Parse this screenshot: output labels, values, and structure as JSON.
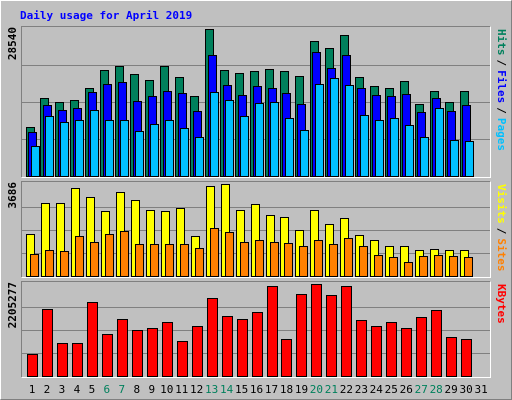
{
  "chart_data": [
    {
      "type": "bar",
      "title": "Daily usage for April 2019",
      "legend_separator": "/",
      "ylim": [
        0,
        28540
      ],
      "yticks": [
        28540
      ],
      "series": [
        {
          "name": "Hits",
          "color": "#00805c",
          "values": [
            9514,
            15144,
            14367,
            14755,
            17085,
            20580,
            21357,
            19803,
            18638,
            21357,
            19221,
            15532,
            28540,
            20580,
            19998,
            20386,
            20774,
            20386,
            19415,
            26211,
            24851,
            27375,
            19221,
            17474,
            17085,
            18444,
            13979,
            16503,
            14367,
            16503,
            null
          ]
        },
        {
          "name": "Files",
          "color": "#0000ff",
          "values": [
            8543,
            13785,
            12814,
            13202,
            16309,
            17862,
            18250,
            14561,
            15532,
            16503,
            16114,
            12620,
            23492,
            17668,
            15726,
            17474,
            17085,
            16114,
            13979,
            24075,
            20968,
            23492,
            17085,
            15726,
            15532,
            15920,
            12426,
            15144,
            12620,
            13785,
            null
          ]
        },
        {
          "name": "Pages",
          "color": "#00c0ff",
          "values": [
            5825,
            11649,
            10484,
            10872,
            12814,
            10872,
            10872,
            8737,
            10096,
            10872,
            9319,
            7572,
            16309,
            14755,
            11649,
            14173,
            14367,
            11261,
            8931,
            17862,
            19027,
            17668,
            11843,
            10872,
            11261,
            9902,
            7572,
            13202,
            6989,
            6795,
            null
          ]
        }
      ]
    },
    {
      "type": "bar",
      "legend_separator": "/",
      "ylim": [
        0,
        3686
      ],
      "yticks": [
        3686
      ],
      "series": [
        {
          "name": "Visits",
          "color": "#ffff00",
          "values": [
            1683,
            2925,
            2925,
            3526,
            3165,
            2605,
            3366,
            3045,
            2645,
            2605,
            2725,
            1603,
            3606,
            3686,
            2645,
            2885,
            2444,
            2364,
            1843,
            2645,
            2084,
            2324,
            1643,
            1443,
            1202,
            1202,
            1042,
            1082,
            1042,
            1042,
            null
          ]
        },
        {
          "name": "Sites",
          "color": "#ff8000",
          "values": [
            882,
            1042,
            1002,
            1603,
            1362,
            1683,
            1803,
            1282,
            1282,
            1282,
            1282,
            1122,
            1923,
            1763,
            1362,
            1443,
            1362,
            1322,
            1202,
            1443,
            1282,
            1523,
            1202,
            841,
            761,
            561,
            801,
            841,
            801,
            761,
            null
          ]
        }
      ]
    },
    {
      "type": "bar",
      "ylim": [
        0,
        2205277
      ],
      "yticks": [
        2205277
      ],
      "categories": [
        "1",
        "2",
        "3",
        "4",
        "5",
        "6",
        "7",
        "8",
        "9",
        "10",
        "11",
        "12",
        "13",
        "14",
        "15",
        "16",
        "17",
        "18",
        "19",
        "20",
        "21",
        "22",
        "23",
        "24",
        "25",
        "26",
        "27",
        "28",
        "29",
        "30",
        "31"
      ],
      "category_colors": [
        "#000000",
        "#000000",
        "#000000",
        "#000000",
        "#000000",
        "#00805c",
        "#00805c",
        "#000000",
        "#000000",
        "#000000",
        "#000000",
        "#000000",
        "#00805c",
        "#00805c",
        "#000000",
        "#000000",
        "#000000",
        "#000000",
        "#000000",
        "#00805c",
        "#00805c",
        "#000000",
        "#000000",
        "#000000",
        "#000000",
        "#000000",
        "#00805c",
        "#00805c",
        "#000000",
        "#000000",
        "#000000"
      ],
      "series": [
        {
          "name": "KBytes",
          "color": "#ff0000",
          "values": [
            527344,
            1606000,
            791000,
            791000,
            1773800,
            1006700,
            1366300,
            1102600,
            1150600,
            1294400,
            838900,
            1198500,
            1869700,
            1438200,
            1366300,
            1534100,
            2157300,
            886900,
            1965600,
            2205277,
            1941600,
            2157300,
            1342300,
            1198500,
            1294400,
            1150600,
            1414200,
            1582000,
            934800,
            886900,
            null
          ]
        }
      ]
    }
  ]
}
